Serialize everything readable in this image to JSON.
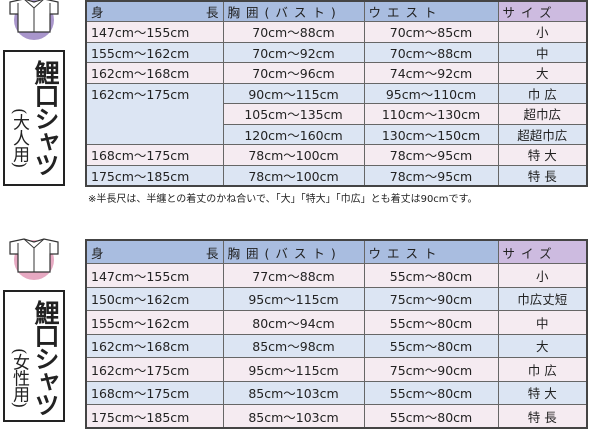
{
  "headers": {
    "height_l": "身",
    "height_r": "長",
    "chest": "胸囲(バスト)",
    "waist": "ウエスト",
    "size": "サイズ"
  },
  "colors": {
    "header": "#a9bde0",
    "size_header": "#cdbbe0",
    "row_pink": "#f5ebf1",
    "row_blue": "#dce5f3",
    "men_icon": "#a996cc",
    "women_icon": "#e7a9c2"
  },
  "men": {
    "icon": "shirt-icon",
    "title": "鯉口シャツ",
    "subtitle": "(大人用)",
    "rows": [
      {
        "height": "147cm〜155cm",
        "chest": "70cm〜88cm",
        "waist": "70cm〜85cm",
        "size": "小"
      },
      {
        "height": "155cm〜162cm",
        "chest": "70cm〜92cm",
        "waist": "70cm〜88cm",
        "size": "中"
      },
      {
        "height": "162cm〜168cm",
        "chest": "70cm〜96cm",
        "waist": "74cm〜92cm",
        "size": "大"
      },
      {
        "height": "162cm〜175cm",
        "chest": "90cm〜115cm",
        "waist": "95cm〜110cm",
        "size": "巾 広"
      },
      {
        "height": "",
        "chest": "105cm〜135cm",
        "waist": "110cm〜130cm",
        "size": "超巾広"
      },
      {
        "height": "",
        "chest": "120cm〜160cm",
        "waist": "130cm〜150cm",
        "size": "超超巾広"
      },
      {
        "height": "168cm〜175cm",
        "chest": "78cm〜100cm",
        "waist": "78cm〜95cm",
        "size": "特 大"
      },
      {
        "height": "175cm〜185cm",
        "chest": "78cm〜100cm",
        "waist": "78cm〜95cm",
        "size": "特 長"
      }
    ],
    "note": "※半長尺は、半纏との着丈のかね合いで、「大」「特大」「巾広」とも着丈は90cmです。"
  },
  "women": {
    "icon": "shirt-icon",
    "title": "鯉口シャツ",
    "subtitle": "(女性用)",
    "rows": [
      {
        "height": "147cm〜155cm",
        "chest": "77cm〜88cm",
        "waist": "55cm〜80cm",
        "size": "小"
      },
      {
        "height": "150cm〜162cm",
        "chest": "95cm〜115cm",
        "waist": "75cm〜90cm",
        "size": "巾広丈短"
      },
      {
        "height": "155cm〜162cm",
        "chest": "80cm〜94cm",
        "waist": "55cm〜80cm",
        "size": "中"
      },
      {
        "height": "162cm〜168cm",
        "chest": "85cm〜98cm",
        "waist": "55cm〜80cm",
        "size": "大"
      },
      {
        "height": "162cm〜175cm",
        "chest": "95cm〜115cm",
        "waist": "75cm〜90cm",
        "size": "巾 広"
      },
      {
        "height": "168cm〜175cm",
        "chest": "85cm〜103cm",
        "waist": "55cm〜80cm",
        "size": "特 大"
      },
      {
        "height": "175cm〜185cm",
        "chest": "85cm〜103cm",
        "waist": "55cm〜80cm",
        "size": "特 長"
      }
    ]
  }
}
